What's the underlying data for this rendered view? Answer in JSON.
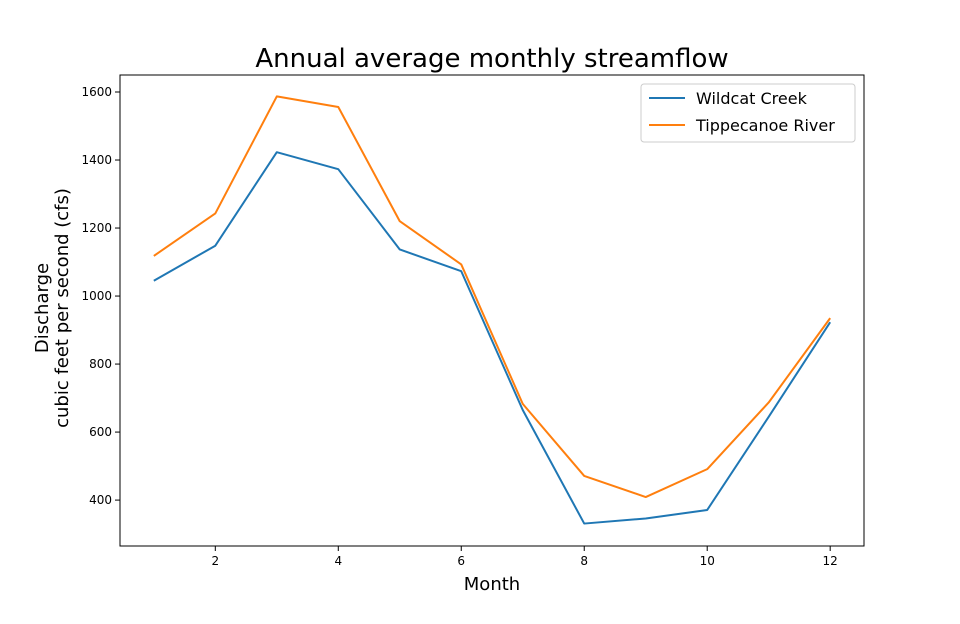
{
  "chart_data": {
    "type": "line",
    "title": "Annual average monthly streamflow",
    "xlabel": "Month",
    "ylabel_line1": "Discharge",
    "ylabel_line2": "cubic feet per second (cfs)",
    "x": [
      1,
      2,
      3,
      4,
      5,
      6,
      7,
      8,
      9,
      10,
      11,
      12
    ],
    "xlim": [
      0.45,
      12.55
    ],
    "ylim": [
      265,
      1650
    ],
    "xticks": [
      2,
      4,
      6,
      8,
      10,
      12
    ],
    "yticks": [
      400,
      600,
      800,
      1000,
      1200,
      1400,
      1600
    ],
    "grid": false,
    "legend_position": "top-right",
    "series": [
      {
        "name": "Wildcat Creek",
        "color": "#1f77b4",
        "values": [
          1045,
          1148,
          1423,
          1373,
          1137,
          1073,
          665,
          331,
          346,
          371,
          645,
          923
        ]
      },
      {
        "name": "Tippecanoe River",
        "color": "#ff7f0e",
        "values": [
          1118,
          1243,
          1587,
          1556,
          1220,
          1093,
          683,
          471,
          409,
          491,
          687,
          935
        ]
      }
    ]
  }
}
